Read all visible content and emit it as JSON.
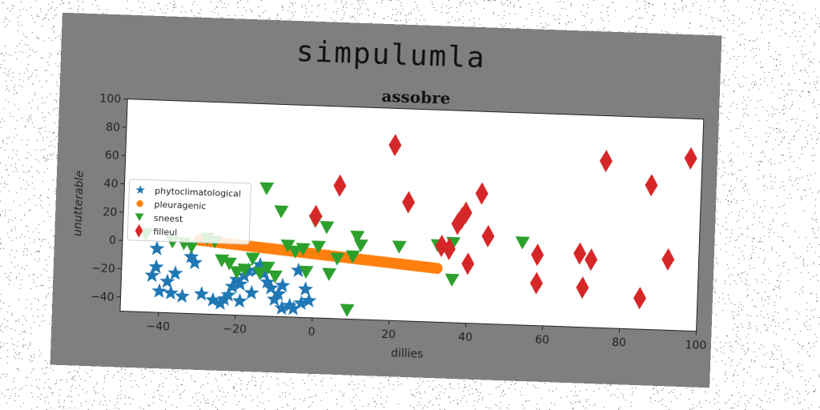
{
  "figure": {
    "title": "simpulumla"
  },
  "chart_data": {
    "type": "scatter",
    "title": "assobre",
    "xlabel": "dillies",
    "ylabel": "unutterable",
    "xlim": [
      -50,
      100
    ],
    "ylim": [
      -50,
      100
    ],
    "xticks": [
      "−40",
      "−20",
      "0",
      "20",
      "40",
      "60",
      "80",
      "100"
    ],
    "xtick_values": [
      -40,
      -20,
      0,
      20,
      40,
      60,
      80,
      100
    ],
    "yticks": [
      "−40",
      "−20",
      "0",
      "20",
      "40",
      "60",
      "80",
      "100"
    ],
    "ytick_values": [
      -40,
      -20,
      0,
      20,
      40,
      60,
      80,
      100
    ],
    "grid": false,
    "legend_position": "center-left",
    "series": [
      {
        "name": "phytoclimatological",
        "marker": "star",
        "color": "#1f77b4",
        "points": [
          [
            -41,
            -5
          ],
          [
            -41,
            -18
          ],
          [
            -42,
            -24
          ],
          [
            -40,
            -35
          ],
          [
            -37,
            -36
          ],
          [
            -38,
            -28
          ],
          [
            -36,
            -22
          ],
          [
            -34,
            -38
          ],
          [
            -32,
            -10
          ],
          [
            -31,
            -14
          ],
          [
            -29,
            -36
          ],
          [
            -26,
            -40
          ],
          [
            -24,
            -42
          ],
          [
            -23,
            -39
          ],
          [
            -22,
            -36
          ],
          [
            -21,
            -30
          ],
          [
            -20,
            -25
          ],
          [
            -19,
            -28
          ],
          [
            -18,
            -22
          ],
          [
            -17,
            -18
          ],
          [
            -16,
            -34
          ],
          [
            -14,
            -14
          ],
          [
            -13,
            -20
          ],
          [
            -12,
            -26
          ],
          [
            -11,
            -30
          ],
          [
            -10,
            -38
          ],
          [
            -9,
            -34
          ],
          [
            -8,
            -28
          ],
          [
            -6,
            -42
          ],
          [
            -5,
            -44
          ],
          [
            -4,
            -17
          ],
          [
            -3,
            -40
          ],
          [
            -2,
            -30
          ],
          [
            -1,
            -38
          ],
          [
            -19,
            -40
          ],
          [
            -15,
            -18
          ],
          [
            -8,
            -44
          ]
        ]
      },
      {
        "name": "pleuragenic",
        "marker": "circle",
        "color": "#ff7f0e",
        "line": {
          "x0": -30,
          "y0": 2,
          "x1": 32,
          "y1": -12,
          "count": 60
        }
      },
      {
        "name": "sneest",
        "marker": "triangle-down",
        "color": "#2ca02c",
        "points": [
          [
            -44,
            5
          ],
          [
            -37,
            0
          ],
          [
            -34,
            -1
          ],
          [
            -32,
            -3
          ],
          [
            -28,
            3
          ],
          [
            -26,
            1
          ],
          [
            -24,
            -12
          ],
          [
            -22,
            -14
          ],
          [
            -20,
            -20
          ],
          [
            -18,
            -18
          ],
          [
            -16,
            -10
          ],
          [
            -14,
            -20
          ],
          [
            -12,
            -16
          ],
          [
            -10,
            -22
          ],
          [
            -13,
            40
          ],
          [
            -9,
            24
          ],
          [
            -7,
            0
          ],
          [
            -5,
            -4
          ],
          [
            -3,
            -2
          ],
          [
            -2,
            -18
          ],
          [
            0,
            18
          ],
          [
            1,
            0
          ],
          [
            3,
            14
          ],
          [
            4,
            -19
          ],
          [
            6,
            -8
          ],
          [
            9,
            -44
          ],
          [
            10,
            -6
          ],
          [
            11,
            8
          ],
          [
            12,
            2
          ],
          [
            22,
            2
          ],
          [
            32,
            4
          ],
          [
            36,
            6
          ],
          [
            36,
            -20
          ],
          [
            54,
            8
          ]
        ]
      },
      {
        "name": "filleul",
        "marker": "diamond",
        "color": "#d62728",
        "points": [
          [
            0,
            22
          ],
          [
            6,
            44
          ],
          [
            20,
            74
          ],
          [
            24,
            34
          ],
          [
            33,
            4
          ],
          [
            35,
            2
          ],
          [
            37,
            20
          ],
          [
            38,
            24
          ],
          [
            39,
            28
          ],
          [
            40,
            -8
          ],
          [
            43,
            42
          ],
          [
            45,
            12
          ],
          [
            58,
            0
          ],
          [
            58,
            -20
          ],
          [
            69,
            2
          ],
          [
            70,
            -22
          ],
          [
            72,
            -2
          ],
          [
            75,
            68
          ],
          [
            85,
            -28
          ],
          [
            87,
            52
          ],
          [
            92,
            0
          ],
          [
            97,
            72
          ]
        ]
      }
    ]
  }
}
